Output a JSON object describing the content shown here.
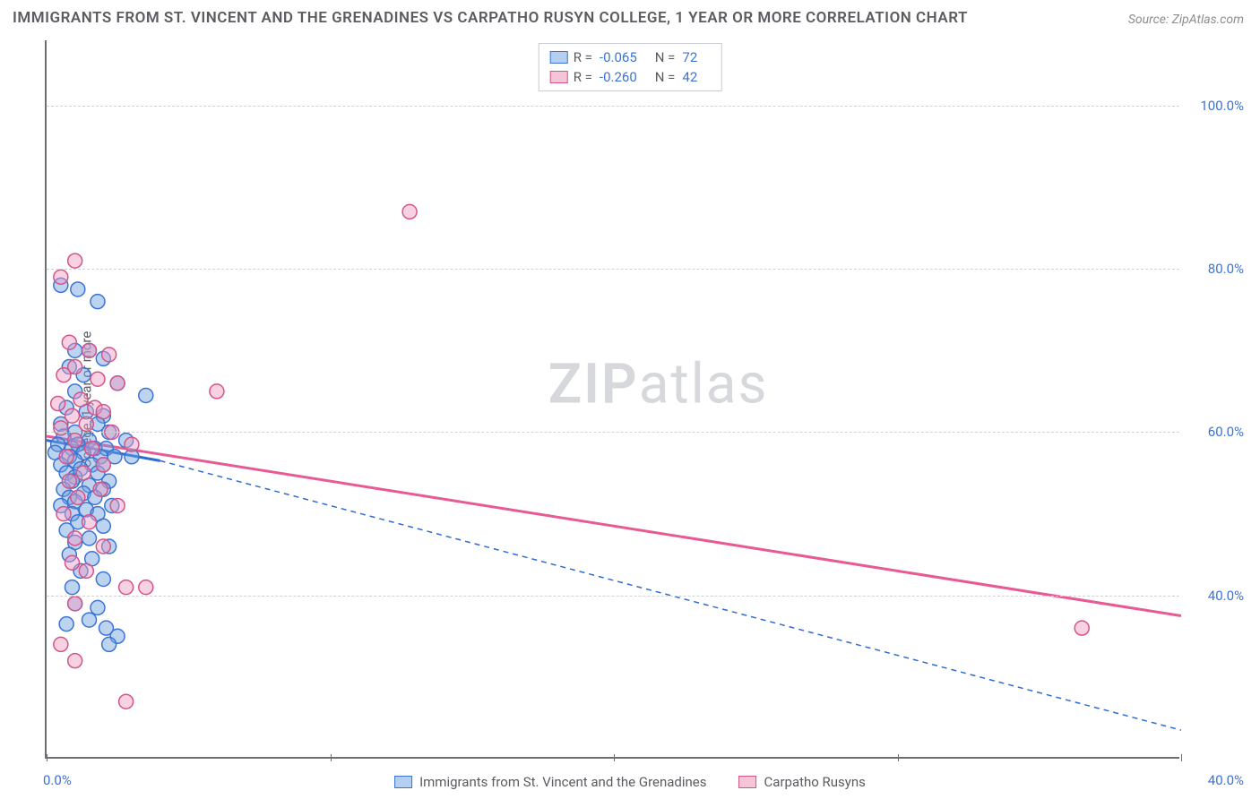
{
  "title": "IMMIGRANTS FROM ST. VINCENT AND THE GRENADINES VS CARPATHO RUSYN COLLEGE, 1 YEAR OR MORE CORRELATION CHART",
  "source": "Source: ZipAtlas.com",
  "y_axis_label": "College, 1 year or more",
  "watermark_bold": "ZIP",
  "watermark_rest": "atlas",
  "chart": {
    "type": "scatter",
    "x_domain": [
      0,
      40
    ],
    "y_domain": [
      20,
      108
    ],
    "y_gridlines": [
      40,
      60,
      80,
      100
    ],
    "y_tick_labels": [
      "40.0%",
      "60.0%",
      "80.0%",
      "100.0%"
    ],
    "x_tick_positions": [
      0,
      10,
      20,
      30,
      40
    ],
    "x_origin_label": "0.0%",
    "x_end_label": "40.0%",
    "background_color": "#ffffff",
    "grid_color": "#d0d2d6",
    "axis_color": "#6d6f73",
    "point_radius": 8,
    "series": [
      {
        "name": "Immigrants from St. Vincent and the Grenadines",
        "class": "pt-blue",
        "swatch_class": "sw-blue",
        "R": "-0.065",
        "N": "72",
        "trend_solid": {
          "x1": 0,
          "y1": 59.0,
          "x2": 4.0,
          "y2": 56.5
        },
        "trend_dash": {
          "x1": 4.0,
          "y1": 56.5,
          "x2": 40,
          "y2": 23.5
        },
        "points": [
          [
            0.5,
            78
          ],
          [
            1.1,
            77.5
          ],
          [
            1.8,
            76
          ],
          [
            1.0,
            70
          ],
          [
            1.5,
            70
          ],
          [
            2.0,
            69
          ],
          [
            0.8,
            68
          ],
          [
            1.3,
            67
          ],
          [
            2.5,
            66
          ],
          [
            1.0,
            65
          ],
          [
            3.5,
            64.5
          ],
          [
            0.7,
            63
          ],
          [
            1.4,
            62.5
          ],
          [
            2.0,
            62
          ],
          [
            0.5,
            61
          ],
          [
            1.8,
            61
          ],
          [
            1.0,
            60
          ],
          [
            2.2,
            60
          ],
          [
            0.6,
            59.5
          ],
          [
            1.5,
            59
          ],
          [
            2.8,
            59
          ],
          [
            1.1,
            58.5
          ],
          [
            0.4,
            58.5
          ],
          [
            0.9,
            58
          ],
          [
            1.7,
            58
          ],
          [
            2.1,
            58
          ],
          [
            0.3,
            57.5
          ],
          [
            1.3,
            57.5
          ],
          [
            1.9,
            57
          ],
          [
            0.8,
            57
          ],
          [
            2.4,
            57
          ],
          [
            1.0,
            56.5
          ],
          [
            1.6,
            56
          ],
          [
            0.5,
            56
          ],
          [
            2.0,
            56
          ],
          [
            3.0,
            57
          ],
          [
            1.2,
            55.5
          ],
          [
            0.7,
            55
          ],
          [
            1.8,
            55
          ],
          [
            1.0,
            54.5
          ],
          [
            2.2,
            54
          ],
          [
            0.9,
            54
          ],
          [
            1.5,
            53.5
          ],
          [
            0.6,
            53
          ],
          [
            2.0,
            53
          ],
          [
            1.3,
            52.5
          ],
          [
            0.8,
            52
          ],
          [
            1.7,
            52
          ],
          [
            1.0,
            51.5
          ],
          [
            2.3,
            51
          ],
          [
            0.5,
            51
          ],
          [
            1.4,
            50.5
          ],
          [
            0.9,
            50
          ],
          [
            1.8,
            50
          ],
          [
            1.1,
            49
          ],
          [
            2.0,
            48.5
          ],
          [
            0.7,
            48
          ],
          [
            1.5,
            47
          ],
          [
            1.0,
            46.5
          ],
          [
            2.2,
            46
          ],
          [
            0.8,
            45
          ],
          [
            1.6,
            44.5
          ],
          [
            1.2,
            43
          ],
          [
            2.0,
            42
          ],
          [
            0.9,
            41
          ],
          [
            1.0,
            39
          ],
          [
            1.8,
            38.5
          ],
          [
            1.5,
            37
          ],
          [
            0.7,
            36.5
          ],
          [
            2.1,
            36
          ],
          [
            2.5,
            35
          ],
          [
            2.2,
            34
          ]
        ]
      },
      {
        "name": "Carpatho Rusyns",
        "class": "pt-pink",
        "swatch_class": "sw-pink",
        "R": "-0.260",
        "N": "42",
        "trend_solid": {
          "x1": 0,
          "y1": 59.5,
          "x2": 40,
          "y2": 37.5
        },
        "points": [
          [
            1.0,
            81
          ],
          [
            0.5,
            79
          ],
          [
            12.8,
            87
          ],
          [
            0.8,
            71
          ],
          [
            1.5,
            70
          ],
          [
            2.2,
            69.5
          ],
          [
            1.0,
            68
          ],
          [
            0.6,
            67
          ],
          [
            1.8,
            66.5
          ],
          [
            2.5,
            66
          ],
          [
            6.0,
            65
          ],
          [
            1.2,
            64
          ],
          [
            0.4,
            63.5
          ],
          [
            1.7,
            63
          ],
          [
            2.0,
            62.5
          ],
          [
            0.9,
            62
          ],
          [
            1.4,
            61
          ],
          [
            0.5,
            60.5
          ],
          [
            2.3,
            60
          ],
          [
            1.0,
            59
          ],
          [
            3.0,
            58.5
          ],
          [
            1.6,
            58
          ],
          [
            0.7,
            57
          ],
          [
            2.0,
            56
          ],
          [
            1.3,
            55
          ],
          [
            0.8,
            54
          ],
          [
            1.9,
            53
          ],
          [
            1.1,
            52
          ],
          [
            2.5,
            51
          ],
          [
            0.6,
            50
          ],
          [
            1.5,
            49
          ],
          [
            1.0,
            47
          ],
          [
            2.0,
            46
          ],
          [
            0.9,
            44
          ],
          [
            1.4,
            43
          ],
          [
            2.8,
            41
          ],
          [
            3.5,
            41
          ],
          [
            1.0,
            39
          ],
          [
            36.5,
            36
          ],
          [
            0.5,
            34
          ],
          [
            2.8,
            27
          ],
          [
            1.0,
            32
          ]
        ]
      }
    ]
  },
  "bottom_legend": [
    {
      "swatch": "sw-blue",
      "label": "Immigrants from St. Vincent and the Grenadines"
    },
    {
      "swatch": "sw-pink",
      "label": "Carpatho Rusyns"
    }
  ]
}
